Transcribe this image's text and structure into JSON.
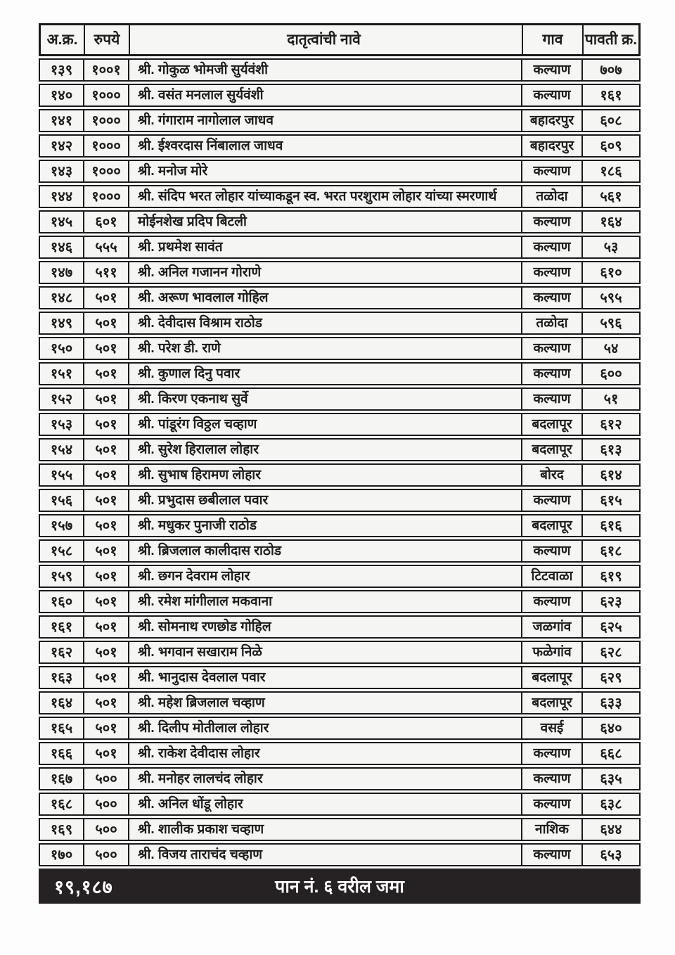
{
  "colors": {
    "border": "#1a1a1a",
    "cell_background": "#f5f5f3",
    "footer_background": "#262223",
    "footer_text": "#ffffff",
    "text": "#1d1d1d"
  },
  "table": {
    "columns": [
      {
        "key": "serial",
        "label": "अ.क्र."
      },
      {
        "key": "amount",
        "label": "रुपये"
      },
      {
        "key": "name",
        "label": "दातृत्वांची नावे"
      },
      {
        "key": "village",
        "label": "गाव"
      },
      {
        "key": "receipt",
        "label": "पावती क्र."
      }
    ],
    "rows": [
      [
        "१३९",
        "१००१",
        "श्री. गोकुळ भोमजी सुर्यवंशी",
        "कल्याण",
        "७०७"
      ],
      [
        "१४०",
        "१०००",
        "श्री. वसंत मनलाल सुर्यवंशी",
        "कल्याण",
        "१६१"
      ],
      [
        "१४१",
        "१०००",
        "श्री. गंगाराम नागोलाल जाधव",
        "बहादरपुर",
        "६०८"
      ],
      [
        "१४२",
        "१०००",
        "श्री. ईश्वरदास निंबालाल जाधव",
        "बहादरपुर",
        "६०९"
      ],
      [
        "१४३",
        "१०००",
        "श्री. मनोज मोरे",
        "कल्याण",
        "१८६"
      ],
      [
        "१४४",
        "१०००",
        "श्री. संदिप भरत लोहार यांच्याकडून स्व. भरत परशुराम लोहार यांच्या स्मरणार्थ",
        "तळोदा",
        "५६१"
      ],
      [
        "१४५",
        "६०१",
        "मोईनशेख प्रदिप बिटली",
        "कल्याण",
        "१६४"
      ],
      [
        "१४६",
        "५५५",
        "श्री. प्रथमेश सावंत",
        "कल्याण",
        "५३"
      ],
      [
        "१४७",
        "५११",
        "श्री. अनिल गजानन गोराणे",
        "कल्याण",
        "६१०"
      ],
      [
        "१४८",
        "५०१",
        "श्री. अरूण भावलाल गोहिल",
        "कल्याण",
        "५९५"
      ],
      [
        "१४९",
        "५०१",
        "श्री. देवीदास विश्राम राठोड",
        "तळोदा",
        "५९६"
      ],
      [
        "१५०",
        "५०१",
        "श्री. परेश डी. राणे",
        "कल्याण",
        "५४"
      ],
      [
        "१५१",
        "५०१",
        "श्री. कुणाल दिनु पवार",
        "कल्याण",
        "६००"
      ],
      [
        "१५२",
        "५०१",
        "श्री. किरण एकनाथ सुर्वे",
        "कल्याण",
        "५१"
      ],
      [
        "१५३",
        "५०१",
        "श्री. पांडूरंग विठ्ठल चव्हाण",
        "बदलापूर",
        "६१२"
      ],
      [
        "१५४",
        "५०१",
        "श्री. सुरेश हिरालाल लोहार",
        "बदलापूर",
        "६१३"
      ],
      [
        "१५५",
        "५०१",
        "श्री. सुभाष हिरामण लोहार",
        "बोरद",
        "६१४"
      ],
      [
        "१५६",
        "५०१",
        "श्री. प्रभुदास छबीलाल पवार",
        "कल्याण",
        "६१५"
      ],
      [
        "१५७",
        "५०१",
        "श्री. मधुकर पुनाजी राठोड",
        "बदलापूर",
        "६१६"
      ],
      [
        "१५८",
        "५०१",
        "श्री. ब्रिजलाल कालीदास राठोड",
        "कल्याण",
        "६१८"
      ],
      [
        "१५९",
        "५०१",
        "श्री. छगन देवराम लोहार",
        "टिटवाळा",
        "६१९"
      ],
      [
        "१६०",
        "५०१",
        "श्री. रमेश मांगीलाल मकवाना",
        "कल्याण",
        "६२३"
      ],
      [
        "१६१",
        "५०१",
        "श्री. सोमनाथ रणछोड गोहिल",
        "जळगांव",
        "६२५"
      ],
      [
        "१६२",
        "५०१",
        "श्री. भगवान सखाराम निळे",
        "फळेगांव",
        "६२८"
      ],
      [
        "१६३",
        "५०१",
        "श्री. भानुदास देवलाल पवार",
        "बदलापूर",
        "६२९"
      ],
      [
        "१६४",
        "५०१",
        "श्री. महेश ब्रिजलाल चव्हाण",
        "बदलापूर",
        "६३३"
      ],
      [
        "१६५",
        "५०१",
        "श्री. दिलीप मोतीलाल लोहार",
        "वसई",
        "६४०"
      ],
      [
        "१६६",
        "५०१",
        "श्री. राकेश देवीदास लोहार",
        "कल्याण",
        "६६८"
      ],
      [
        "१६७",
        "५००",
        "श्री. मनोहर लालचंद लोहार",
        "कल्याण",
        "६३५"
      ],
      [
        "१६८",
        "५००",
        "श्री. अनिल धोंडू लोहार",
        "कल्याण",
        "६३८"
      ],
      [
        "१६९",
        "५००",
        "श्री. शालीक प्रकाश चव्हाण",
        "नाशिक",
        "६४४"
      ],
      [
        "१७०",
        "५००",
        "श्री. विजय ताराचंद चव्हाण",
        "कल्याण",
        "६५३"
      ]
    ]
  },
  "footer": {
    "total": "१९,१८७",
    "label": "पान नं. ६ वरील जमा"
  }
}
